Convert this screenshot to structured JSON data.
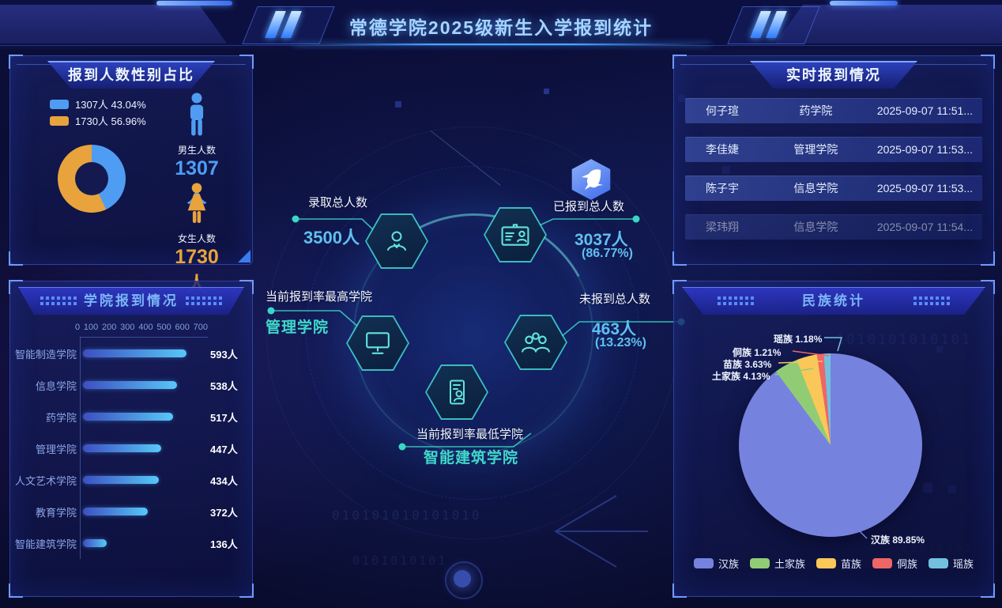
{
  "header": {
    "title": "常德学院2025级新生入学报到统计"
  },
  "gender_panel": {
    "title": "报到人数性别占比",
    "legend": [
      {
        "label": "1307人 43.04%",
        "color": "#4f9df2"
      },
      {
        "label": "1730人 56.96%",
        "color": "#e8a33d"
      }
    ],
    "male": {
      "caption": "男生人数",
      "value": "1307人",
      "color": "#4f9df2"
    },
    "female": {
      "caption": "女生人数",
      "value": "1730人",
      "color": "#e8a33d"
    }
  },
  "gender_chart": {
    "slices": [
      {
        "name": "男生",
        "value": 1307,
        "pct": 43.04,
        "color": "#4f9df2"
      },
      {
        "name": "女生",
        "value": 1730,
        "pct": 56.96,
        "color": "#e8a33d"
      }
    ]
  },
  "college_panel": {
    "title": "学院报到情况",
    "axis_ticks": [
      "0",
      "100",
      "200",
      "300",
      "400",
      "500",
      "600",
      "700"
    ],
    "axis_max": 700,
    "rows": [
      {
        "name": "智能制造学院",
        "value": 593,
        "label": "593人"
      },
      {
        "name": "信息学院",
        "value": 538,
        "label": "538人"
      },
      {
        "name": "药学院",
        "value": 517,
        "label": "517人"
      },
      {
        "name": "管理学院",
        "value": 447,
        "label": "447人"
      },
      {
        "name": "人文艺术学院",
        "value": 434,
        "label": "434人"
      },
      {
        "name": "教育学院",
        "value": 372,
        "label": "372人"
      },
      {
        "name": "智能建筑学院",
        "value": 136,
        "label": "136人"
      }
    ]
  },
  "center": {
    "admitted": {
      "label": "录取总人数",
      "value": "3500人"
    },
    "reported": {
      "label": "已报到总人数",
      "value": "3037人",
      "percent": "(86.77%)"
    },
    "highest": {
      "label": "当前报到率最高学院",
      "value": "管理学院"
    },
    "unreported": {
      "label": "未报到总人数",
      "value": "463人",
      "percent": "(13.23%)"
    },
    "lowest": {
      "label": "当前报到率最低学院",
      "value": "智能建筑学院"
    }
  },
  "realtime_panel": {
    "title": "实时报到情况",
    "rows": [
      {
        "name": "何子瑄",
        "college": "药学院",
        "time": "2025-09-07 11:51..."
      },
      {
        "name": "李佳婕",
        "college": "管理学院",
        "time": "2025-09-07 11:53..."
      },
      {
        "name": "陈子宇",
        "college": "信息学院",
        "time": "2025-09-07 11:53..."
      },
      {
        "name": "梁玮翔",
        "college": "信息学院",
        "time": "2025-09-07 11:54..."
      }
    ]
  },
  "ethnic_panel": {
    "title": "民族统计",
    "slices": [
      {
        "name": "汉族",
        "pct": 89.85,
        "color": "#7583de",
        "label": "汉族 89.85%"
      },
      {
        "name": "土家族",
        "pct": 4.13,
        "color": "#91cc75",
        "label": "土家族 4.13%"
      },
      {
        "name": "苗族",
        "pct": 3.63,
        "color": "#fac858",
        "label": "苗族 3.63%"
      },
      {
        "name": "侗族",
        "pct": 1.21,
        "color": "#ee6666",
        "label": "侗族 1.21%"
      },
      {
        "name": "瑶族",
        "pct": 1.18,
        "color": "#73c0de",
        "label": "瑶族 1.18%"
      }
    ]
  },
  "chart_data": [
    {
      "type": "pie",
      "subtype": "donut",
      "title": "报到人数性别占比",
      "labels": [
        "男生",
        "女生"
      ],
      "values": [
        1307,
        1730
      ],
      "percents": [
        43.04,
        56.96
      ],
      "colors": [
        "#4f9df2",
        "#e8a33d"
      ],
      "legend_position": "top-left",
      "start_angle": "top",
      "direction": "clockwise"
    },
    {
      "type": "bar",
      "title": "学院报到情况",
      "orientation": "horizontal",
      "categories": [
        "智能制造学院",
        "信息学院",
        "药学院",
        "管理学院",
        "人文艺术学院",
        "教育学院",
        "智能建筑学院"
      ],
      "values": [
        593,
        538,
        517,
        447,
        434,
        372,
        136
      ],
      "value_labels": [
        "593人",
        "538人",
        "517人",
        "447人",
        "434人",
        "372人",
        "136人"
      ],
      "xlabel": "",
      "ylabel": "",
      "xlim": [
        0,
        700
      ],
      "xticks": [
        0,
        100,
        200,
        300,
        400,
        500,
        600,
        700
      ],
      "grid": false
    },
    {
      "type": "pie",
      "title": "民族统计",
      "labels": [
        "汉族",
        "土家族",
        "苗族",
        "侗族",
        "瑶族"
      ],
      "values": [
        89.85,
        4.13,
        3.63,
        1.21,
        1.18
      ],
      "unit": "%",
      "colors": [
        "#7583de",
        "#91cc75",
        "#fac858",
        "#ee6666",
        "#73c0de"
      ],
      "legend_position": "bottom",
      "start_angle": "top",
      "direction": "clockwise"
    }
  ]
}
